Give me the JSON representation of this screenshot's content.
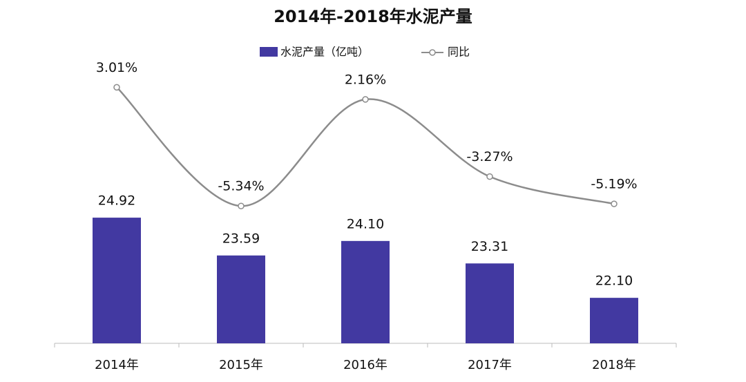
{
  "chart_data": {
    "type": "bar",
    "title": "2014年-2018年水泥产量",
    "categories": [
      "2014年",
      "2015年",
      "2016年",
      "2017年",
      "2018年"
    ],
    "series": [
      {
        "name": "水泥产量（亿吨）",
        "type": "bar",
        "color": "#4239a1",
        "values": [
          24.92,
          23.59,
          24.1,
          23.31,
          22.1
        ],
        "value_labels": [
          "24.92",
          "23.59",
          "24.10",
          "23.31",
          "22.10"
        ]
      },
      {
        "name": "同比",
        "type": "line",
        "axis": "y2",
        "color": "#8c8c8c",
        "values": [
          3.01,
          -5.34,
          2.16,
          -3.27,
          -5.19
        ],
        "value_labels": [
          "3.01%",
          "-5.34%",
          "2.16%",
          "-3.27%",
          "-5.19%"
        ]
      }
    ],
    "ylim": [
      20.5,
      30
    ],
    "y2lim": [
      -15,
      4
    ],
    "legend": "top"
  }
}
